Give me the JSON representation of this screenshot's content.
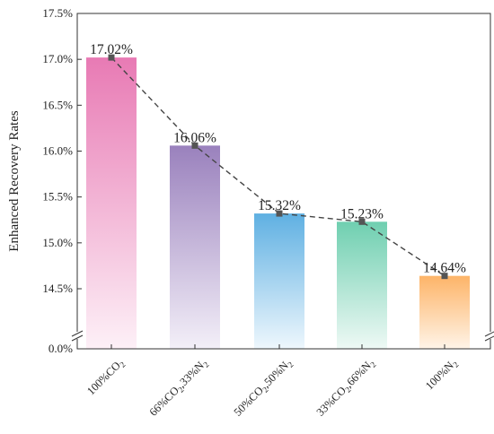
{
  "chart_data": {
    "type": "bar",
    "title": "",
    "xlabel": "",
    "ylabel": "Enhanced Recovery Rates",
    "ylim": [
      14.0,
      17.5
    ],
    "axis_break": true,
    "y_ticks": [
      "0.0%",
      "14.5%",
      "15.0%",
      "15.5%",
      "16.0%",
      "16.5%",
      "17.0%",
      "17.5%"
    ],
    "categories": [
      {
        "main": "100%CO",
        "sub1": "2",
        "mid": "",
        "sub2": ""
      },
      {
        "main": "66%CO",
        "sub1": "2",
        "mid": ",33%N",
        "sub2": "2"
      },
      {
        "main": "50%CO",
        "sub1": "2",
        "mid": ",50%N",
        "sub2": "2"
      },
      {
        "main": "33%CO",
        "sub1": "2",
        "mid": ",66%N",
        "sub2": "2"
      },
      {
        "main": "100%N",
        "sub1": "2",
        "mid": "",
        "sub2": ""
      }
    ],
    "values": [
      17.02,
      16.06,
      15.32,
      15.23,
      14.64
    ],
    "data_labels": [
      "17.02%",
      "16.06%",
      "15.32%",
      "15.23%",
      "14.64%"
    ],
    "bar_colors": [
      [
        "#e87ab4",
        "#fdf0f7"
      ],
      [
        "#9a81bd",
        "#f3eff8"
      ],
      [
        "#5fb0e2",
        "#eef7fd"
      ],
      [
        "#6fcfb0",
        "#eef9f5"
      ],
      [
        "#fdb468",
        "#fff4e8"
      ]
    ],
    "line_color": "#444444",
    "marker_color": "#555555",
    "grid": false,
    "legend": "none"
  }
}
